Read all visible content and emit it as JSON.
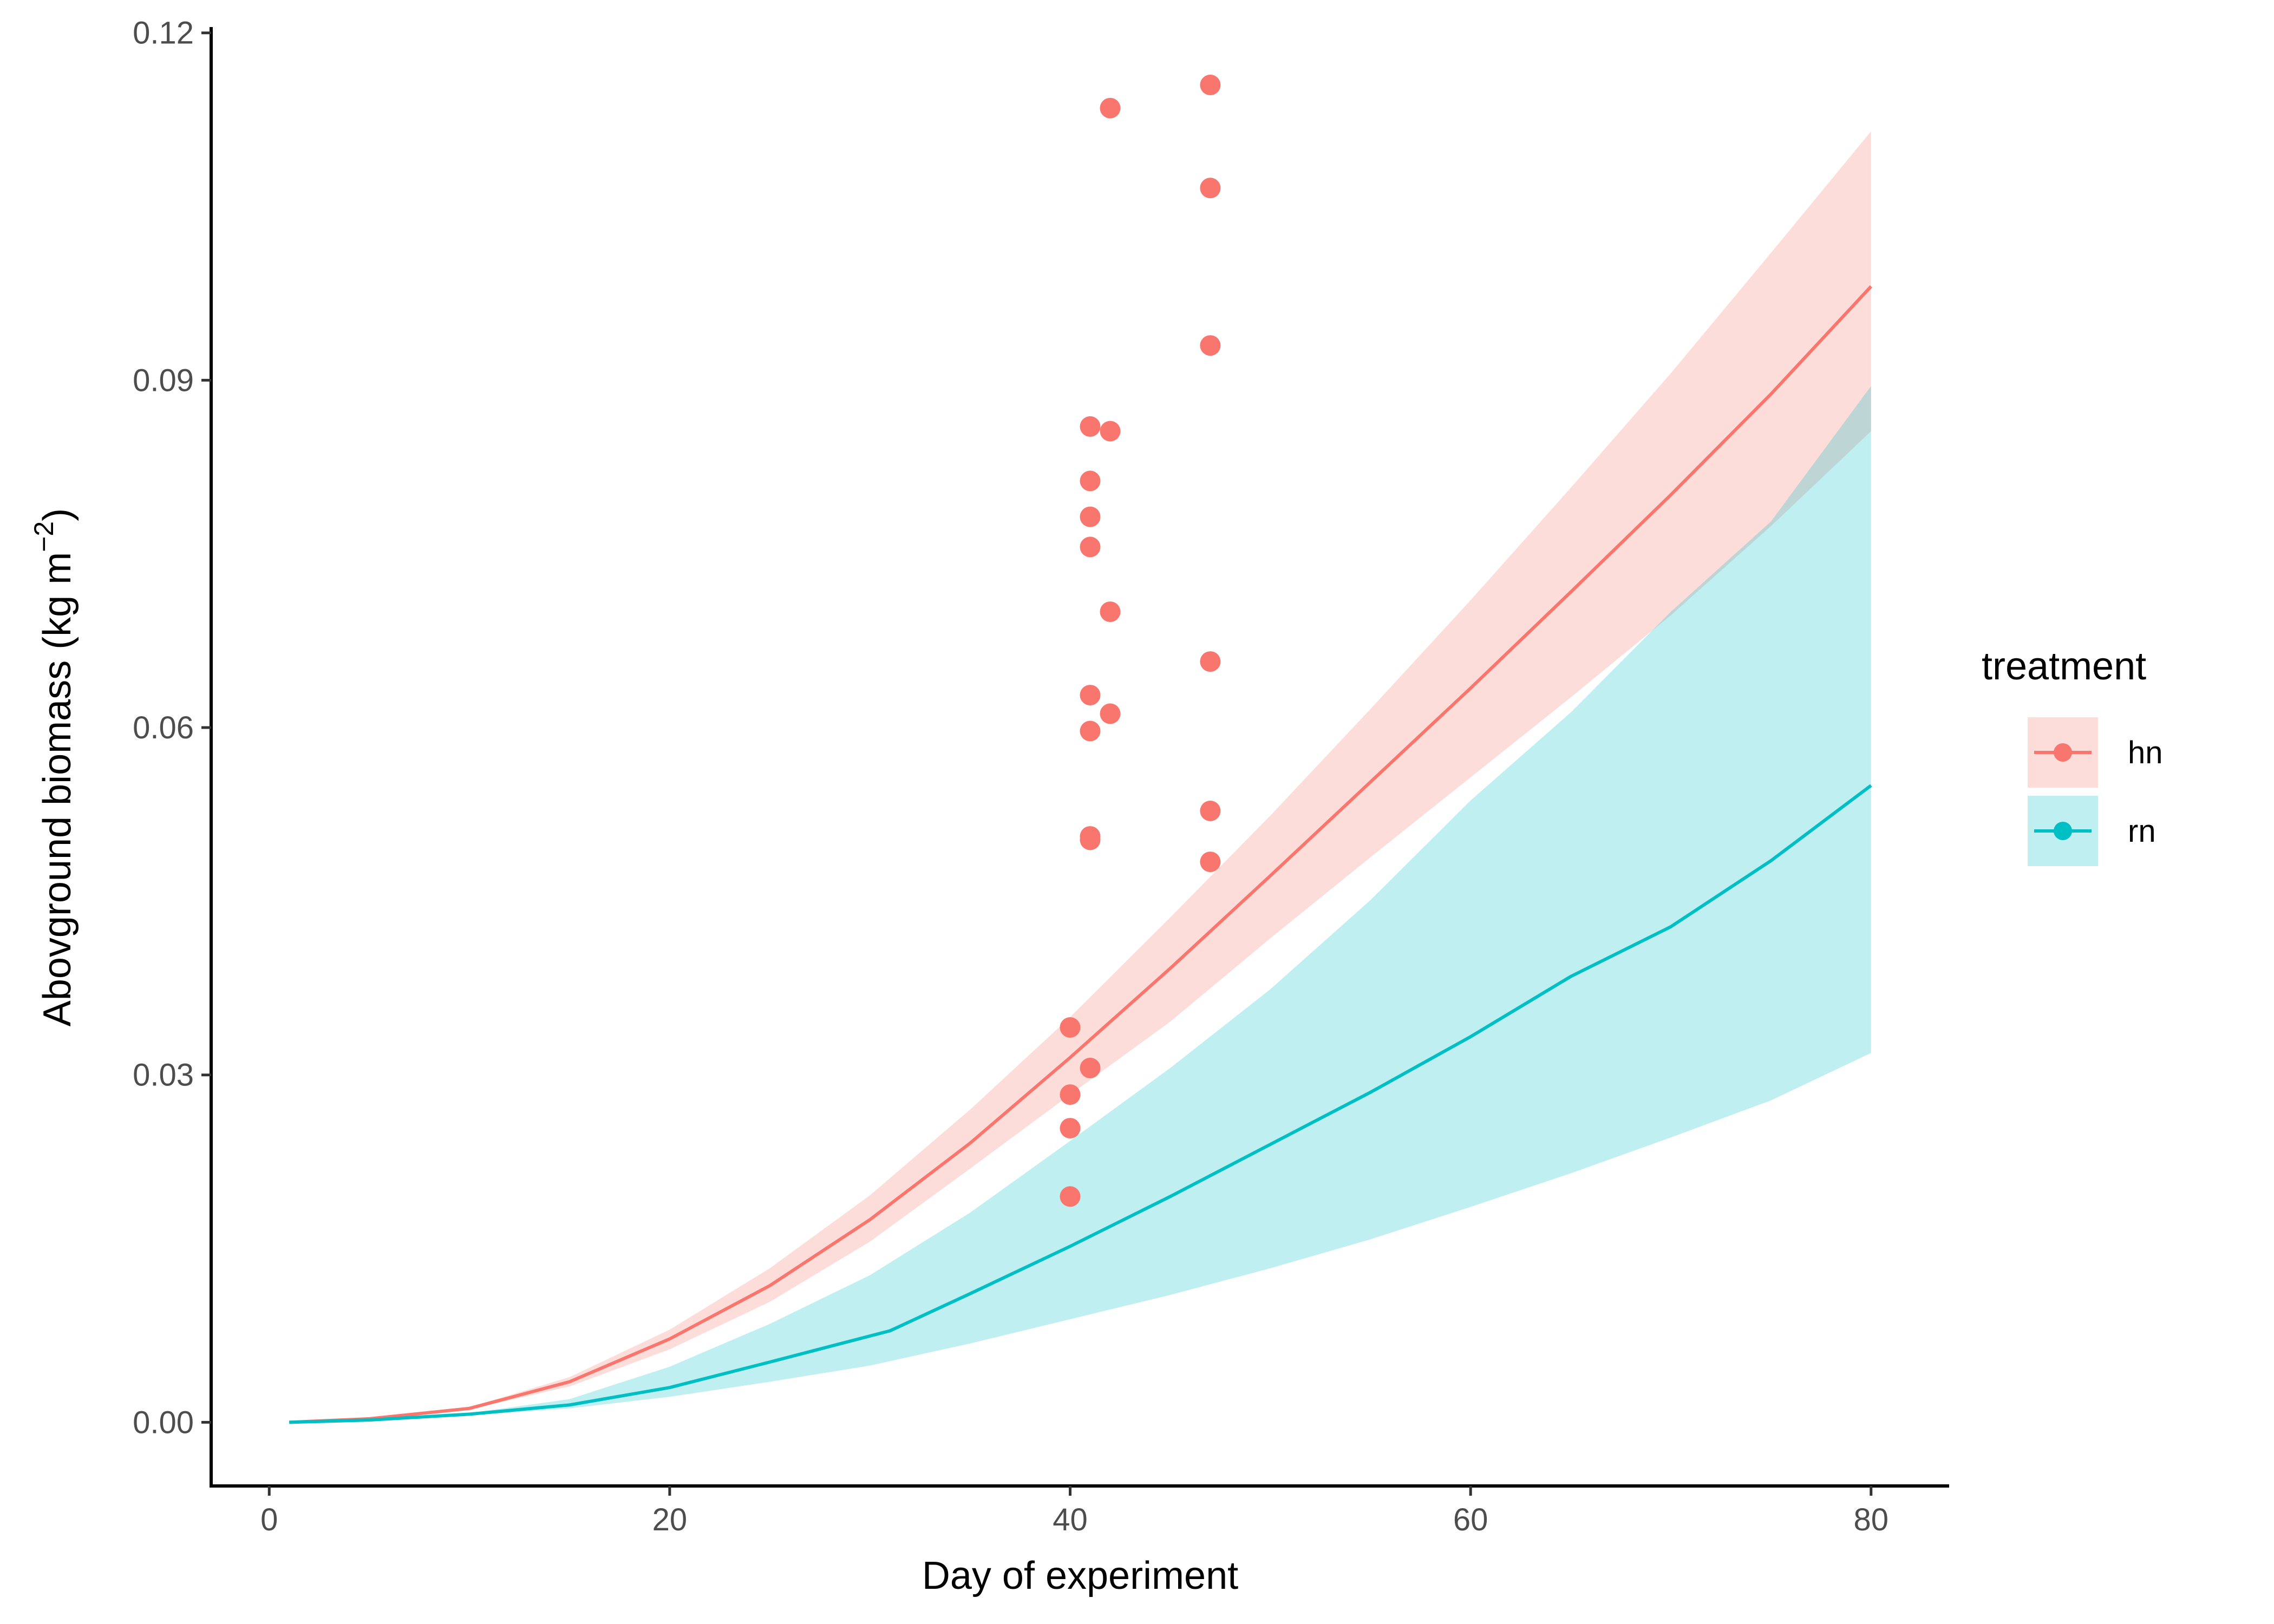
{
  "chart_data": {
    "type": "line",
    "xlabel": "Day of experiment",
    "ylabel_main": "Abovground biomass (kg m",
    "ylabel_sup": "−2",
    "ylabel_close": ")",
    "xlim": [
      -2.9,
      83.9
    ],
    "ylim": [
      -0.0055,
      0.1205
    ],
    "x_ticks": [
      0,
      20,
      40,
      60,
      80
    ],
    "x_tick_labels": [
      "0",
      "20",
      "40",
      "60",
      "80"
    ],
    "y_ticks": [
      0,
      0.03,
      0.06,
      0.09,
      0.12
    ],
    "y_tick_labels": [
      "0.00",
      "0.03",
      "0.06",
      "0.09",
      "0.12"
    ],
    "grid": false,
    "legend": {
      "title": "treatment",
      "placement": "right",
      "entries": [
        "hn",
        "rn"
      ]
    },
    "series": [
      {
        "name": "hn",
        "color": "#F8766D",
        "ribbon_color": "#F8766D",
        "ribbon_opacity": 0.25,
        "line": [
          {
            "x": 1,
            "y": 0.0
          },
          {
            "x": 5,
            "y": 0.0003
          },
          {
            "x": 10,
            "y": 0.0012
          },
          {
            "x": 15,
            "y": 0.0035
          },
          {
            "x": 20,
            "y": 0.0072
          },
          {
            "x": 25,
            "y": 0.0118
          },
          {
            "x": 30,
            "y": 0.0175
          },
          {
            "x": 35,
            "y": 0.0241
          },
          {
            "x": 40,
            "y": 0.0315
          },
          {
            "x": 45,
            "y": 0.0392
          },
          {
            "x": 50,
            "y": 0.0472
          },
          {
            "x": 55,
            "y": 0.0553
          },
          {
            "x": 60,
            "y": 0.0634
          },
          {
            "x": 65,
            "y": 0.0717
          },
          {
            "x": 70,
            "y": 0.0801
          },
          {
            "x": 75,
            "y": 0.0888
          },
          {
            "x": 80,
            "y": 0.0981
          }
        ],
        "ribbon_lower": [
          {
            "x": 1,
            "y": 0.0
          },
          {
            "x": 5,
            "y": 0.0003
          },
          {
            "x": 10,
            "y": 0.0011
          },
          {
            "x": 15,
            "y": 0.0031
          },
          {
            "x": 20,
            "y": 0.0063
          },
          {
            "x": 25,
            "y": 0.0104
          },
          {
            "x": 30,
            "y": 0.0156
          },
          {
            "x": 35,
            "y": 0.0219
          },
          {
            "x": 40,
            "y": 0.0283
          },
          {
            "x": 45,
            "y": 0.0346
          },
          {
            "x": 50,
            "y": 0.0418
          },
          {
            "x": 55,
            "y": 0.0488
          },
          {
            "x": 60,
            "y": 0.0557
          },
          {
            "x": 65,
            "y": 0.0626
          },
          {
            "x": 70,
            "y": 0.0697
          },
          {
            "x": 75,
            "y": 0.0774
          },
          {
            "x": 80,
            "y": 0.0856
          }
        ],
        "ribbon_upper": [
          {
            "x": 1,
            "y": 0.0
          },
          {
            "x": 5,
            "y": 0.0003
          },
          {
            "x": 10,
            "y": 0.0013
          },
          {
            "x": 15,
            "y": 0.0039
          },
          {
            "x": 20,
            "y": 0.008
          },
          {
            "x": 25,
            "y": 0.0133
          },
          {
            "x": 30,
            "y": 0.0196
          },
          {
            "x": 35,
            "y": 0.027
          },
          {
            "x": 40,
            "y": 0.035
          },
          {
            "x": 45,
            "y": 0.0436
          },
          {
            "x": 50,
            "y": 0.0524
          },
          {
            "x": 55,
            "y": 0.0616
          },
          {
            "x": 60,
            "y": 0.071
          },
          {
            "x": 65,
            "y": 0.0807
          },
          {
            "x": 70,
            "y": 0.0906
          },
          {
            "x": 75,
            "y": 0.101
          },
          {
            "x": 80,
            "y": 0.1115
          }
        ],
        "points": [
          {
            "x": 40,
            "y": 0.0195
          },
          {
            "x": 40,
            "y": 0.0254
          },
          {
            "x": 40,
            "y": 0.0283
          },
          {
            "x": 40,
            "y": 0.0341
          },
          {
            "x": 41,
            "y": 0.0306
          },
          {
            "x": 41,
            "y": 0.0503
          },
          {
            "x": 41,
            "y": 0.0506
          },
          {
            "x": 41,
            "y": 0.0597
          },
          {
            "x": 41,
            "y": 0.0628
          },
          {
            "x": 41,
            "y": 0.0756
          },
          {
            "x": 41,
            "y": 0.0782
          },
          {
            "x": 41,
            "y": 0.0813
          },
          {
            "x": 41,
            "y": 0.086
          },
          {
            "x": 42,
            "y": 0.0612
          },
          {
            "x": 42,
            "y": 0.07
          },
          {
            "x": 42,
            "y": 0.0856
          },
          {
            "x": 42,
            "y": 0.1135
          },
          {
            "x": 47,
            "y": 0.0484
          },
          {
            "x": 47,
            "y": 0.0528
          },
          {
            "x": 47,
            "y": 0.0657
          },
          {
            "x": 47,
            "y": 0.093
          },
          {
            "x": 47,
            "y": 0.1066
          },
          {
            "x": 47,
            "y": 0.1155
          }
        ]
      },
      {
        "name": "rn",
        "color": "#00BFC4",
        "ribbon_color": "#00BFC4",
        "ribbon_opacity": 0.25,
        "line": [
          {
            "x": 1,
            "y": 0.0
          },
          {
            "x": 5,
            "y": 0.0002
          },
          {
            "x": 10,
            "y": 0.0007
          },
          {
            "x": 15,
            "y": 0.0015
          },
          {
            "x": 20,
            "y": 0.003
          },
          {
            "x": 25,
            "y": 0.0052
          },
          {
            "x": 31,
            "y": 0.0079
          },
          {
            "x": 35,
            "y": 0.0111
          },
          {
            "x": 40,
            "y": 0.0152
          },
          {
            "x": 45,
            "y": 0.0195
          },
          {
            "x": 50,
            "y": 0.024
          },
          {
            "x": 55,
            "y": 0.0285
          },
          {
            "x": 60,
            "y": 0.0333
          },
          {
            "x": 65,
            "y": 0.0385
          },
          {
            "x": 70,
            "y": 0.0428
          },
          {
            "x": 75,
            "y": 0.0485
          },
          {
            "x": 80,
            "y": 0.055
          }
        ],
        "ribbon_lower": [
          {
            "x": 1,
            "y": 0.0
          },
          {
            "x": 5,
            "y": 0.0002
          },
          {
            "x": 10,
            "y": 0.0006
          },
          {
            "x": 15,
            "y": 0.0012
          },
          {
            "x": 20,
            "y": 0.0022
          },
          {
            "x": 25,
            "y": 0.0035
          },
          {
            "x": 30,
            "y": 0.0049
          },
          {
            "x": 35,
            "y": 0.0068
          },
          {
            "x": 40,
            "y": 0.0089
          },
          {
            "x": 45,
            "y": 0.011
          },
          {
            "x": 50,
            "y": 0.0133
          },
          {
            "x": 55,
            "y": 0.0158
          },
          {
            "x": 60,
            "y": 0.0186
          },
          {
            "x": 65,
            "y": 0.0215
          },
          {
            "x": 70,
            "y": 0.0246
          },
          {
            "x": 75,
            "y": 0.0278
          },
          {
            "x": 80,
            "y": 0.0319
          }
        ],
        "ribbon_upper": [
          {
            "x": 1,
            "y": 0.0
          },
          {
            "x": 5,
            "y": 0.0002
          },
          {
            "x": 10,
            "y": 0.0008
          },
          {
            "x": 15,
            "y": 0.002
          },
          {
            "x": 20,
            "y": 0.0048
          },
          {
            "x": 25,
            "y": 0.0085
          },
          {
            "x": 30,
            "y": 0.0127
          },
          {
            "x": 35,
            "y": 0.0181
          },
          {
            "x": 40,
            "y": 0.0243
          },
          {
            "x": 45,
            "y": 0.0306
          },
          {
            "x": 50,
            "y": 0.0374
          },
          {
            "x": 55,
            "y": 0.0451
          },
          {
            "x": 60,
            "y": 0.0537
          },
          {
            "x": 65,
            "y": 0.0613
          },
          {
            "x": 70,
            "y": 0.07
          },
          {
            "x": 75,
            "y": 0.0778
          },
          {
            "x": 80,
            "y": 0.0895
          }
        ],
        "points": []
      }
    ]
  }
}
